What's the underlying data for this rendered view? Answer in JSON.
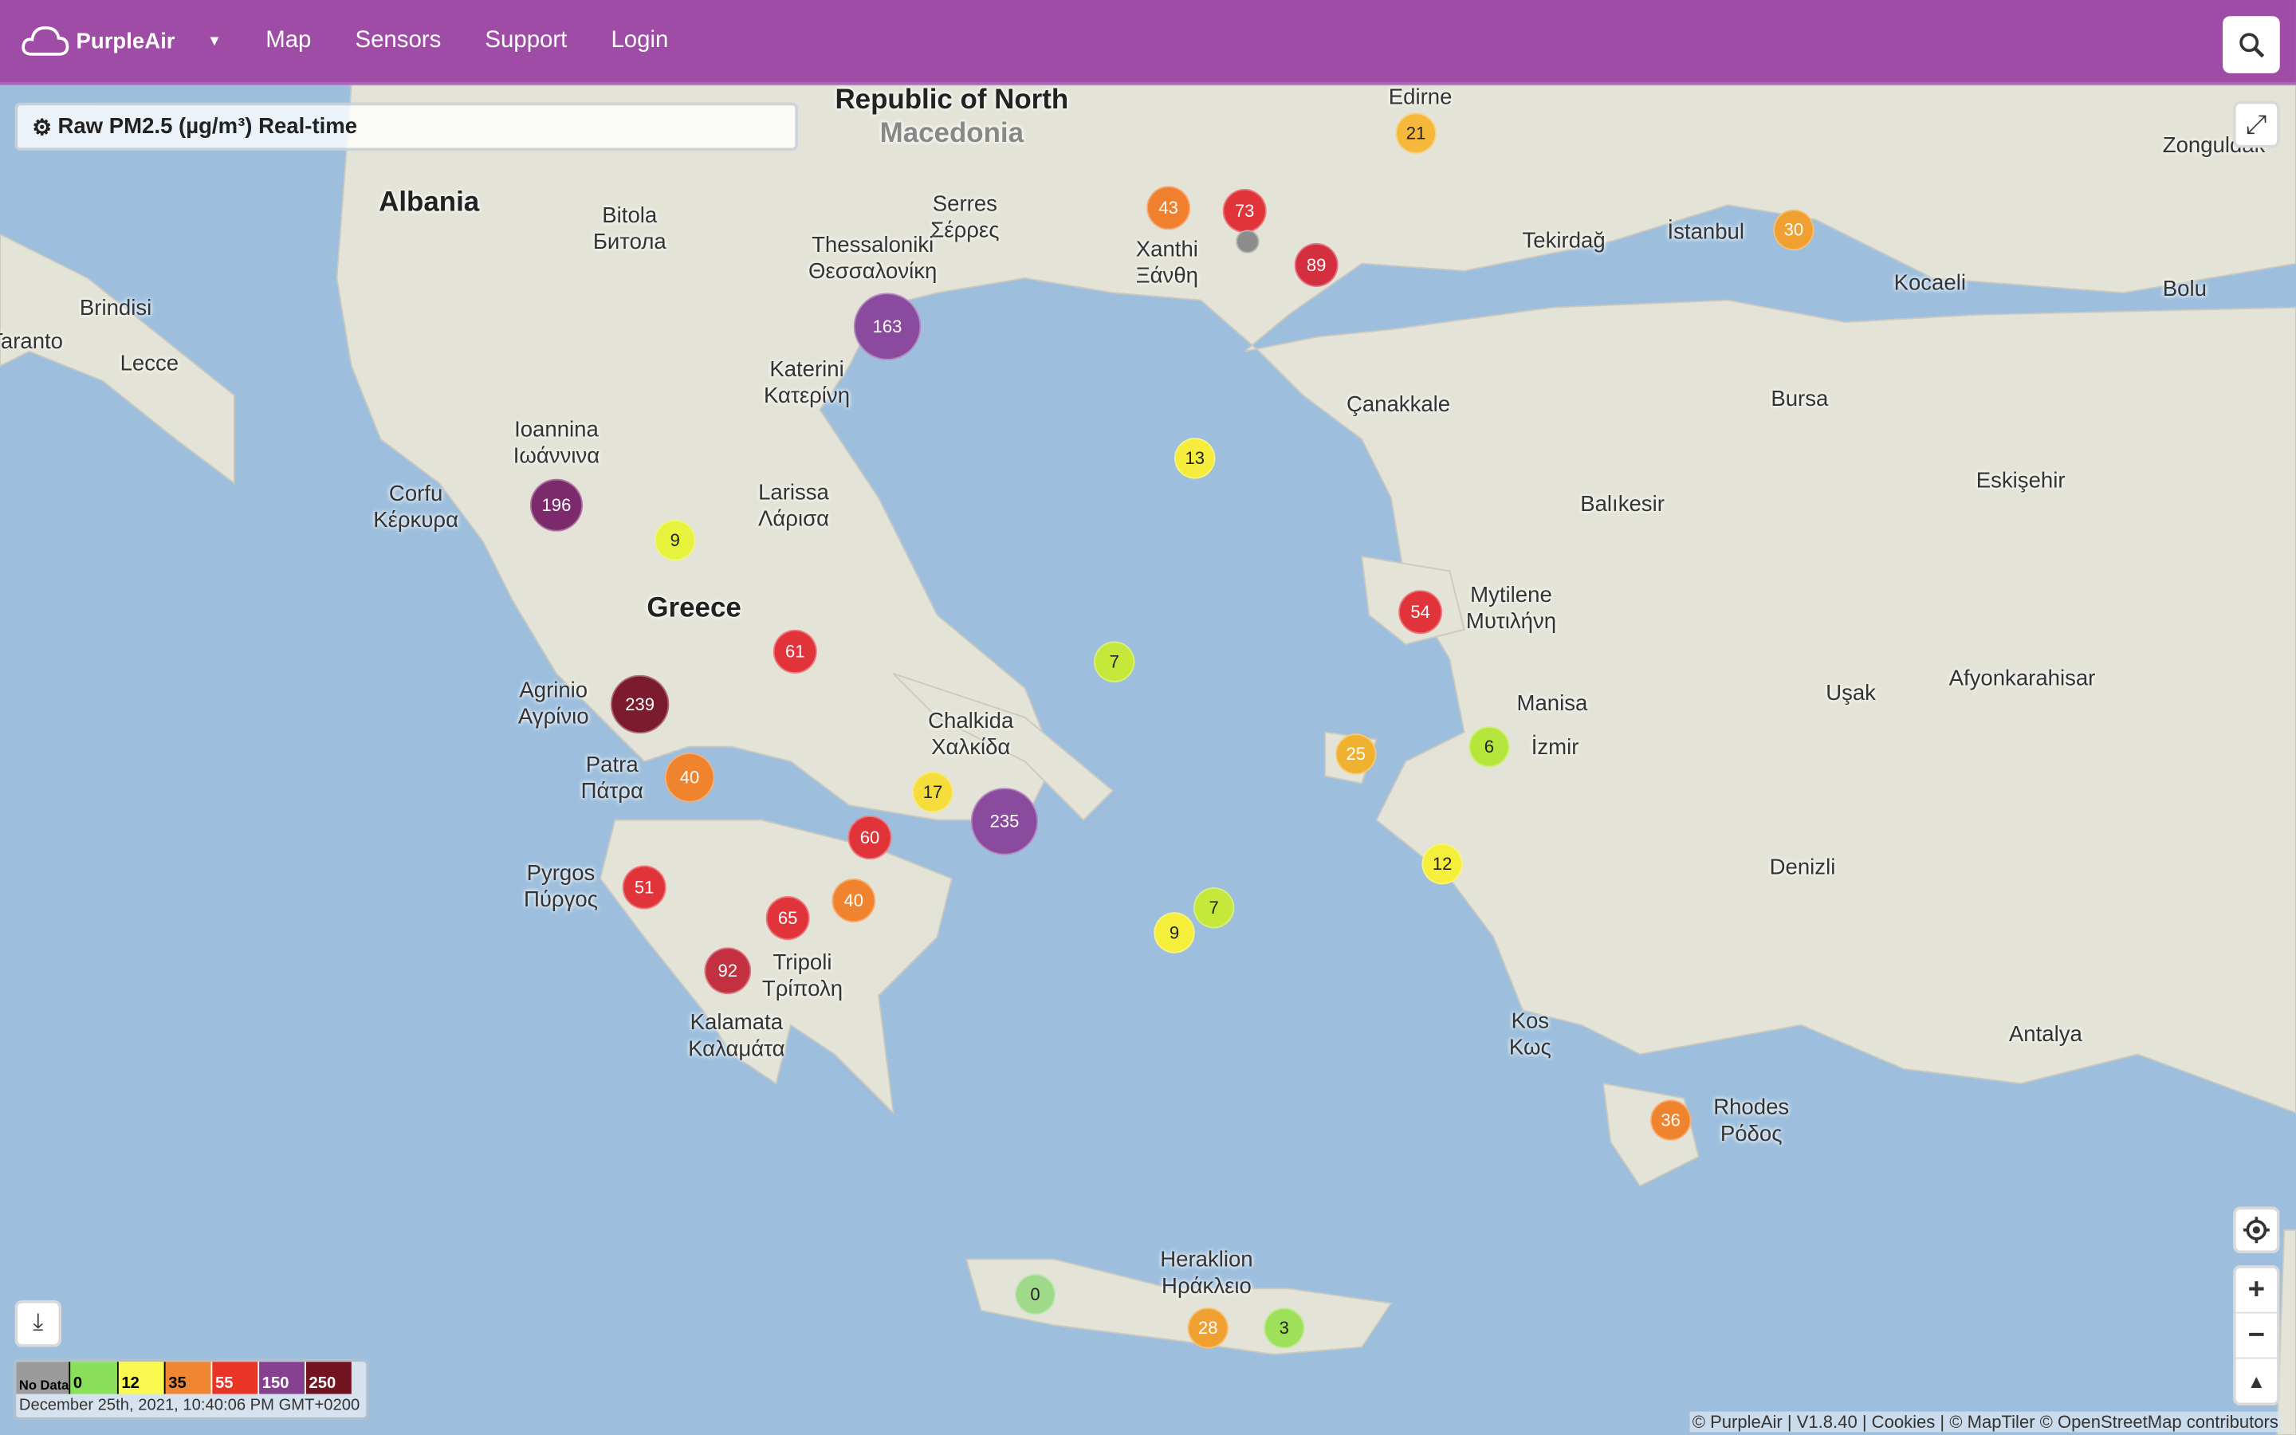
{
  "header": {
    "brand": "PurpleAir",
    "nav": [
      "Map",
      "Sensors",
      "Support",
      "Login"
    ],
    "brand_color": "#9e4ca6"
  },
  "metric_selector": {
    "label": "Raw PM2.5 (µg/m³) Real-time",
    "icon": "gear-icon"
  },
  "places": [
    {
      "name": "Republic of North",
      "kind": "country"
    },
    {
      "name": "Macedonia",
      "kind": "country-faded"
    },
    {
      "name": "Albania",
      "kind": "country"
    },
    {
      "name": "Greece",
      "kind": "country"
    },
    {
      "name": "Edirne"
    },
    {
      "name": "Zonguldak"
    },
    {
      "name": "Bitola\nБитола"
    },
    {
      "name": "Serres\nΣέρρες"
    },
    {
      "name": "Xanthi\nΞάνθη"
    },
    {
      "name": "Tekirdağ"
    },
    {
      "name": "İstanbul"
    },
    {
      "name": "Brindisi"
    },
    {
      "name": "Taranto"
    },
    {
      "name": "Lecce"
    },
    {
      "name": "Thessaloniki\nΘεσσαλονίκη"
    },
    {
      "name": "Kocaeli"
    },
    {
      "name": "Bolu"
    },
    {
      "name": "Katerini\nΚατερίνη"
    },
    {
      "name": "Çanakkale"
    },
    {
      "name": "Bursa"
    },
    {
      "name": "Corfu\nΚέρκυρα"
    },
    {
      "name": "Ioannina\nΙωάννινα"
    },
    {
      "name": "Larissa\nΛάρισα"
    },
    {
      "name": "Eskişehir"
    },
    {
      "name": "Balıkesir"
    },
    {
      "name": "Mytilene\nΜυτιλήνη"
    },
    {
      "name": "Chalkida\nΧαλκίδα"
    },
    {
      "name": "Manisa"
    },
    {
      "name": "Uşak"
    },
    {
      "name": "Afyonkarahisar"
    },
    {
      "name": "İzmir"
    },
    {
      "name": "Agrinio\nΑγρίνιο"
    },
    {
      "name": "Patra\nΠάτρα"
    },
    {
      "name": "Pyrgos\nΠύργος"
    },
    {
      "name": "Tripoli\nΤρίπολη"
    },
    {
      "name": "Denizli"
    },
    {
      "name": "Kalamata\nΚαλαμάτα"
    },
    {
      "name": "Kos\nΚως"
    },
    {
      "name": "Antalya"
    },
    {
      "name": "Rhodes\nΡόδος"
    },
    {
      "name": "Heraklion\nΗράκλειο"
    }
  ],
  "sensors": [
    {
      "value": "21",
      "color": "#f5b83b"
    },
    {
      "value": "43",
      "color": "#f07f2e"
    },
    {
      "value": "73",
      "color": "#e0333a"
    },
    {
      "value": "",
      "color": "#8c8c8c"
    },
    {
      "value": "89",
      "color": "#d42f3e"
    },
    {
      "value": "30",
      "color": "#f0a030"
    },
    {
      "value": "163",
      "color": "#8a4a9e"
    },
    {
      "value": "13",
      "color": "#f5ec3b"
    },
    {
      "value": "196",
      "color": "#7d2a6c"
    },
    {
      "value": "9",
      "color": "#e6f23b"
    },
    {
      "value": "61",
      "color": "#e0333a"
    },
    {
      "value": "7",
      "color": "#c5e83b"
    },
    {
      "value": "54",
      "color": "#e0333a"
    },
    {
      "value": "239",
      "color": "#7b1b2d"
    },
    {
      "value": "25",
      "color": "#f0b030"
    },
    {
      "value": "6",
      "color": "#b5e63b"
    },
    {
      "value": "40",
      "color": "#f0842e"
    },
    {
      "value": "17",
      "color": "#f5dd3b"
    },
    {
      "value": "235",
      "color": "#8a4a9e"
    },
    {
      "value": "60",
      "color": "#e0333a"
    },
    {
      "value": "12",
      "color": "#f5ee3b"
    },
    {
      "value": "51",
      "color": "#e0333a"
    },
    {
      "value": "40",
      "color": "#f0842e"
    },
    {
      "value": "65",
      "color": "#e0333a"
    },
    {
      "value": "7",
      "color": "#c5e83b"
    },
    {
      "value": "9",
      "color": "#f5ee3b"
    },
    {
      "value": "92",
      "color": "#c3303f"
    },
    {
      "value": "36",
      "color": "#f0842e"
    },
    {
      "value": "0",
      "color": "#9fd98a"
    },
    {
      "value": "28",
      "color": "#f0a030"
    },
    {
      "value": "3",
      "color": "#9fe05a"
    }
  ],
  "legend": {
    "bins": [
      {
        "label": "No Data",
        "color": "#9b9b9b"
      },
      {
        "label": "0",
        "color": "#8ae05a"
      },
      {
        "label": "12",
        "color": "#fbf84f"
      },
      {
        "label": "35",
        "color": "#f08532"
      },
      {
        "label": "55",
        "color": "#ea3425"
      },
      {
        "label": "150",
        "color": "#85418f"
      },
      {
        "label": "250",
        "color": "#731421"
      }
    ],
    "timestamp": "December 25th, 2021, 10:40:06 PM GMT+0200"
  },
  "controls": {
    "zoom_in": "+",
    "zoom_out": "−",
    "compass": "▲"
  },
  "attribution": "© PurpleAir | V1.8.40 | Cookies | © MapTiler © OpenStreetMap contributors"
}
